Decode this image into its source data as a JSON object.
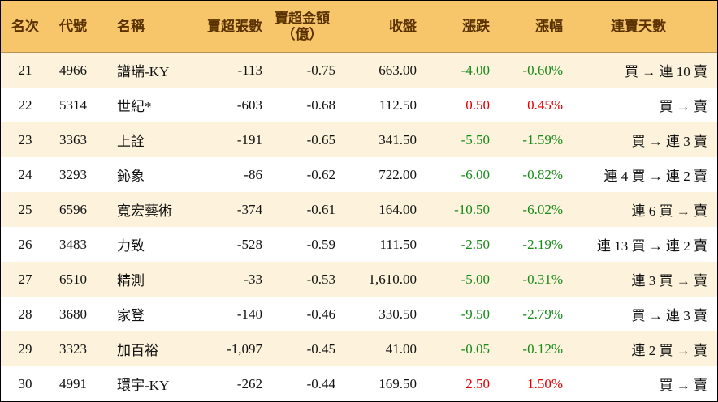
{
  "table": {
    "headers": [
      "名次",
      "代號",
      "名稱",
      "賣超張數",
      [
        "賣超金額",
        "（億）"
      ],
      "收盤",
      "漲跌",
      "漲幅",
      "連賣天數"
    ],
    "rows": [
      [
        "21",
        "4966",
        "譜瑞-KY",
        "-113",
        "-0.75",
        "663.00",
        "-4.00",
        "-0.60%",
        "買 → 連 10 賣"
      ],
      [
        "22",
        "5314",
        "世紀*",
        "-603",
        "-0.68",
        "112.50",
        "0.50",
        "0.45%",
        "買 → 賣"
      ],
      [
        "23",
        "3363",
        "上詮",
        "-191",
        "-0.65",
        "341.50",
        "-5.50",
        "-1.59%",
        "買 → 連 3 賣"
      ],
      [
        "24",
        "3293",
        "鈊象",
        "-86",
        "-0.62",
        "722.00",
        "-6.00",
        "-0.82%",
        "連 4 買 → 連 2 賣"
      ],
      [
        "25",
        "6596",
        "寬宏藝術",
        "-374",
        "-0.61",
        "164.00",
        "-10.50",
        "-6.02%",
        "連 6 買 → 賣"
      ],
      [
        "26",
        "3483",
        "力致",
        "-528",
        "-0.59",
        "111.50",
        "-2.50",
        "-2.19%",
        "連 13 買 → 連 2 賣"
      ],
      [
        "27",
        "6510",
        "精測",
        "-33",
        "-0.53",
        "1,610.00",
        "-5.00",
        "-0.31%",
        "連 3 買 → 賣"
      ],
      [
        "28",
        "3680",
        "家登",
        "-140",
        "-0.46",
        "330.50",
        "-9.50",
        "-2.79%",
        "買 → 連 3 賣"
      ],
      [
        "29",
        "3323",
        "加百裕",
        "-1,097",
        "-0.45",
        "41.00",
        "-0.05",
        "-0.12%",
        "連 2 買 → 賣"
      ],
      [
        "30",
        "4991",
        "環宇-KY",
        "-262",
        "-0.44",
        "169.50",
        "2.50",
        "1.50%",
        "買 → 賣"
      ]
    ]
  }
}
